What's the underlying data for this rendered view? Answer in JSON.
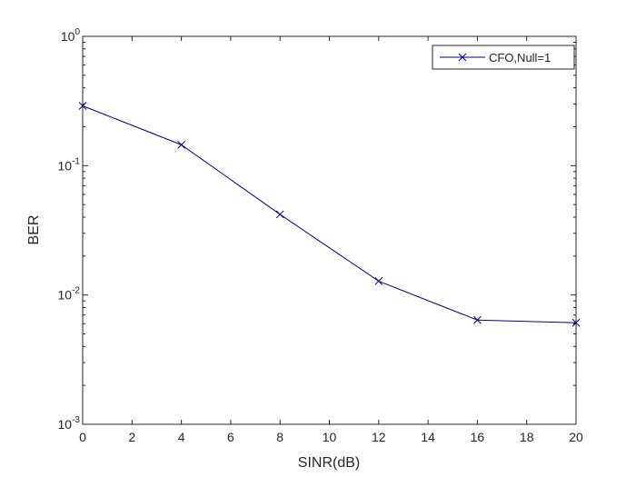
{
  "chart_data": {
    "type": "line",
    "xlabel": "SINR(dB)",
    "ylabel": "BER",
    "xlim": [
      0,
      20
    ],
    "ylim": [
      0.001,
      1
    ],
    "yscale": "log",
    "grid": false,
    "legend_position": "top-right",
    "x_ticks": [
      0,
      2,
      4,
      6,
      8,
      10,
      12,
      14,
      16,
      18,
      20
    ],
    "x_tick_labels": [
      "0",
      "2",
      "4",
      "6",
      "8",
      "10",
      "12",
      "14",
      "16",
      "18",
      "20"
    ],
    "y_ticks": [
      {
        "value": 1,
        "base": "10",
        "exp": "0"
      },
      {
        "value": 0.1,
        "base": "10",
        "exp": "-1"
      },
      {
        "value": 0.01,
        "base": "10",
        "exp": "-2"
      },
      {
        "value": 0.001,
        "base": "10",
        "exp": "-3"
      }
    ],
    "series": [
      {
        "name": "CFO,Null=1",
        "color": "#00008b",
        "marker": "x",
        "x": [
          0,
          4,
          8,
          12,
          16,
          20
        ],
        "y": [
          0.29,
          0.145,
          0.042,
          0.0128,
          0.0064,
          0.0061
        ]
      }
    ]
  }
}
